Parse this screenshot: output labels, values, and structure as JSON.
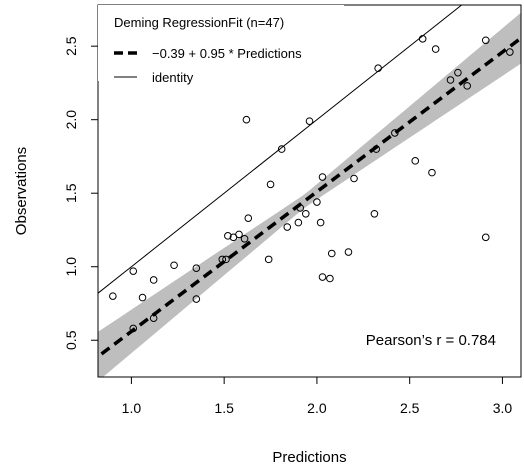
{
  "chart_data": {
    "type": "scatter",
    "title": "",
    "xlabel": "Predictions",
    "ylabel": "Observations",
    "xlim": [
      0.82,
      3.1
    ],
    "ylim": [
      0.25,
      2.78
    ],
    "x_ticks": [
      "1.0",
      "1.5",
      "2.0",
      "2.5",
      "3.0"
    ],
    "y_ticks": [
      "0.5",
      "1.0",
      "1.5",
      "2.0",
      "2.5"
    ],
    "grid": false,
    "legend": {
      "position": "top-left",
      "title": "Deming RegressionFit (n=47)",
      "entries": [
        {
          "label": "−0.39 + 0.95 * Predictions",
          "style": "dashed-thick"
        },
        {
          "label": "identity",
          "style": "solid-thin"
        }
      ]
    },
    "fit": {
      "intercept": -0.39,
      "slope": 0.95
    },
    "confidence_band_color": "#bebebe",
    "annotation": "Pearson’s r = 0.784",
    "points": [
      [
        0.9,
        0.8
      ],
      [
        1.01,
        0.97
      ],
      [
        1.01,
        0.58
      ],
      [
        1.06,
        0.79
      ],
      [
        1.12,
        0.91
      ],
      [
        1.12,
        0.65
      ],
      [
        1.23,
        1.01
      ],
      [
        1.35,
        0.99
      ],
      [
        1.35,
        0.78
      ],
      [
        1.49,
        1.05
      ],
      [
        1.51,
        1.05
      ],
      [
        1.52,
        1.21
      ],
      [
        1.55,
        1.2
      ],
      [
        1.58,
        1.22
      ],
      [
        1.61,
        1.19
      ],
      [
        1.62,
        2.0
      ],
      [
        1.63,
        1.33
      ],
      [
        1.74,
        1.05
      ],
      [
        1.75,
        1.56
      ],
      [
        1.81,
        1.8
      ],
      [
        1.84,
        1.27
      ],
      [
        1.9,
        1.3
      ],
      [
        1.91,
        1.4
      ],
      [
        1.94,
        1.36
      ],
      [
        1.96,
        1.99
      ],
      [
        2.0,
        1.44
      ],
      [
        2.02,
        1.3
      ],
      [
        2.03,
        1.61
      ],
      [
        2.03,
        0.93
      ],
      [
        2.07,
        0.92
      ],
      [
        2.08,
        1.09
      ],
      [
        2.17,
        1.1
      ],
      [
        2.2,
        1.6
      ],
      [
        2.31,
        1.36
      ],
      [
        2.32,
        1.8
      ],
      [
        2.33,
        2.35
      ],
      [
        2.42,
        1.91
      ],
      [
        2.53,
        1.72
      ],
      [
        2.57,
        2.55
      ],
      [
        2.62,
        1.64
      ],
      [
        2.64,
        2.48
      ],
      [
        2.72,
        2.27
      ],
      [
        2.76,
        2.32
      ],
      [
        2.81,
        2.23
      ],
      [
        2.91,
        2.54
      ],
      [
        2.91,
        1.2
      ],
      [
        3.04,
        2.46
      ]
    ]
  }
}
